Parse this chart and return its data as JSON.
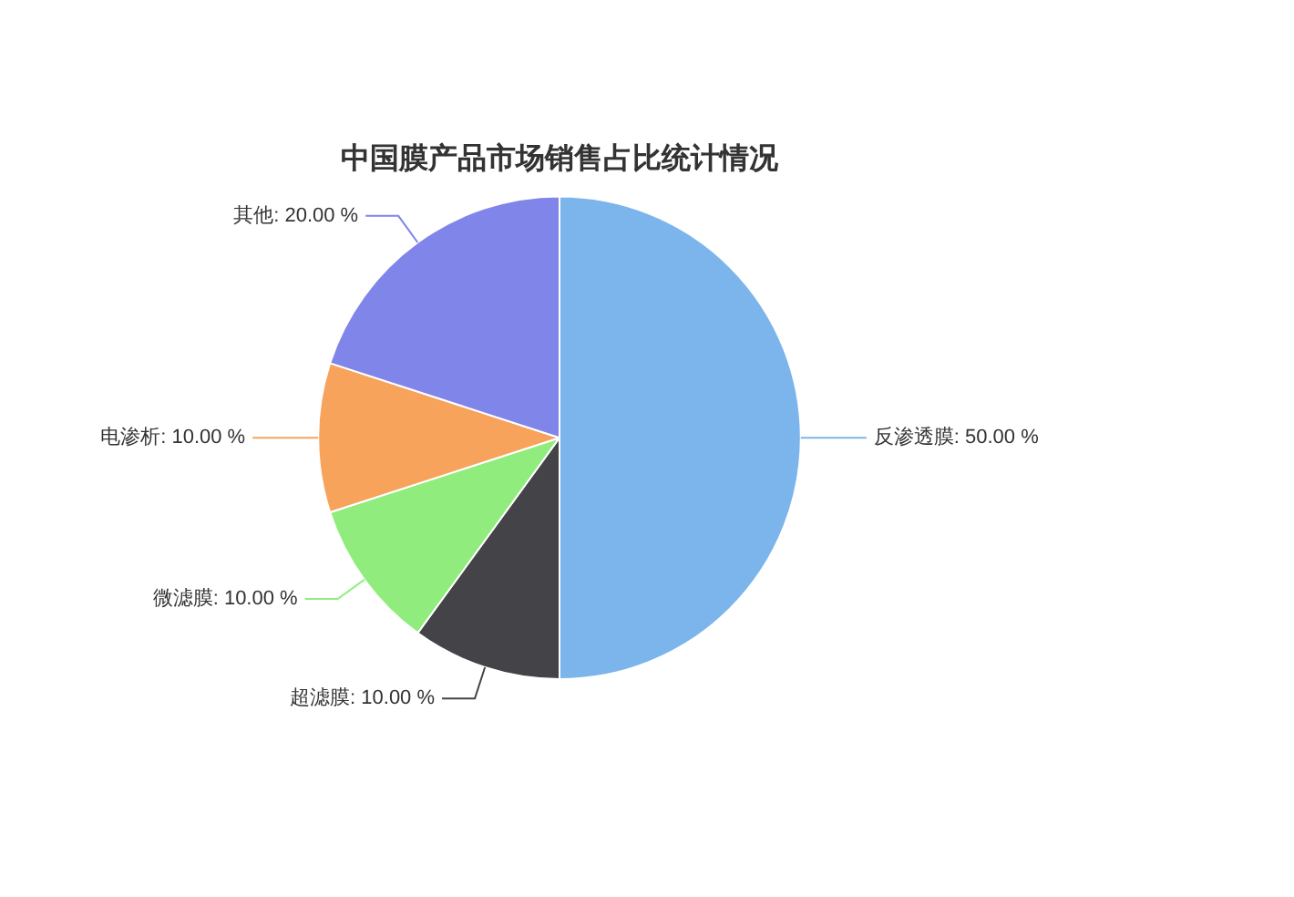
{
  "chart_data": {
    "type": "pie",
    "title": "中国膜产品市场销售占比统计情况",
    "categories": [
      "反渗透膜",
      "超滤膜",
      "微滤膜",
      "电渗析",
      "其他"
    ],
    "values": [
      50,
      10,
      10,
      10,
      20
    ],
    "colors": [
      "#7cb5ec",
      "#434348",
      "#90ed7d",
      "#f7a35c",
      "#8085e9"
    ],
    "value_labels": [
      "50.00 %",
      "10.00 %",
      "10.00 %",
      "10.00 %",
      "20.00 %"
    ],
    "legend": false
  }
}
